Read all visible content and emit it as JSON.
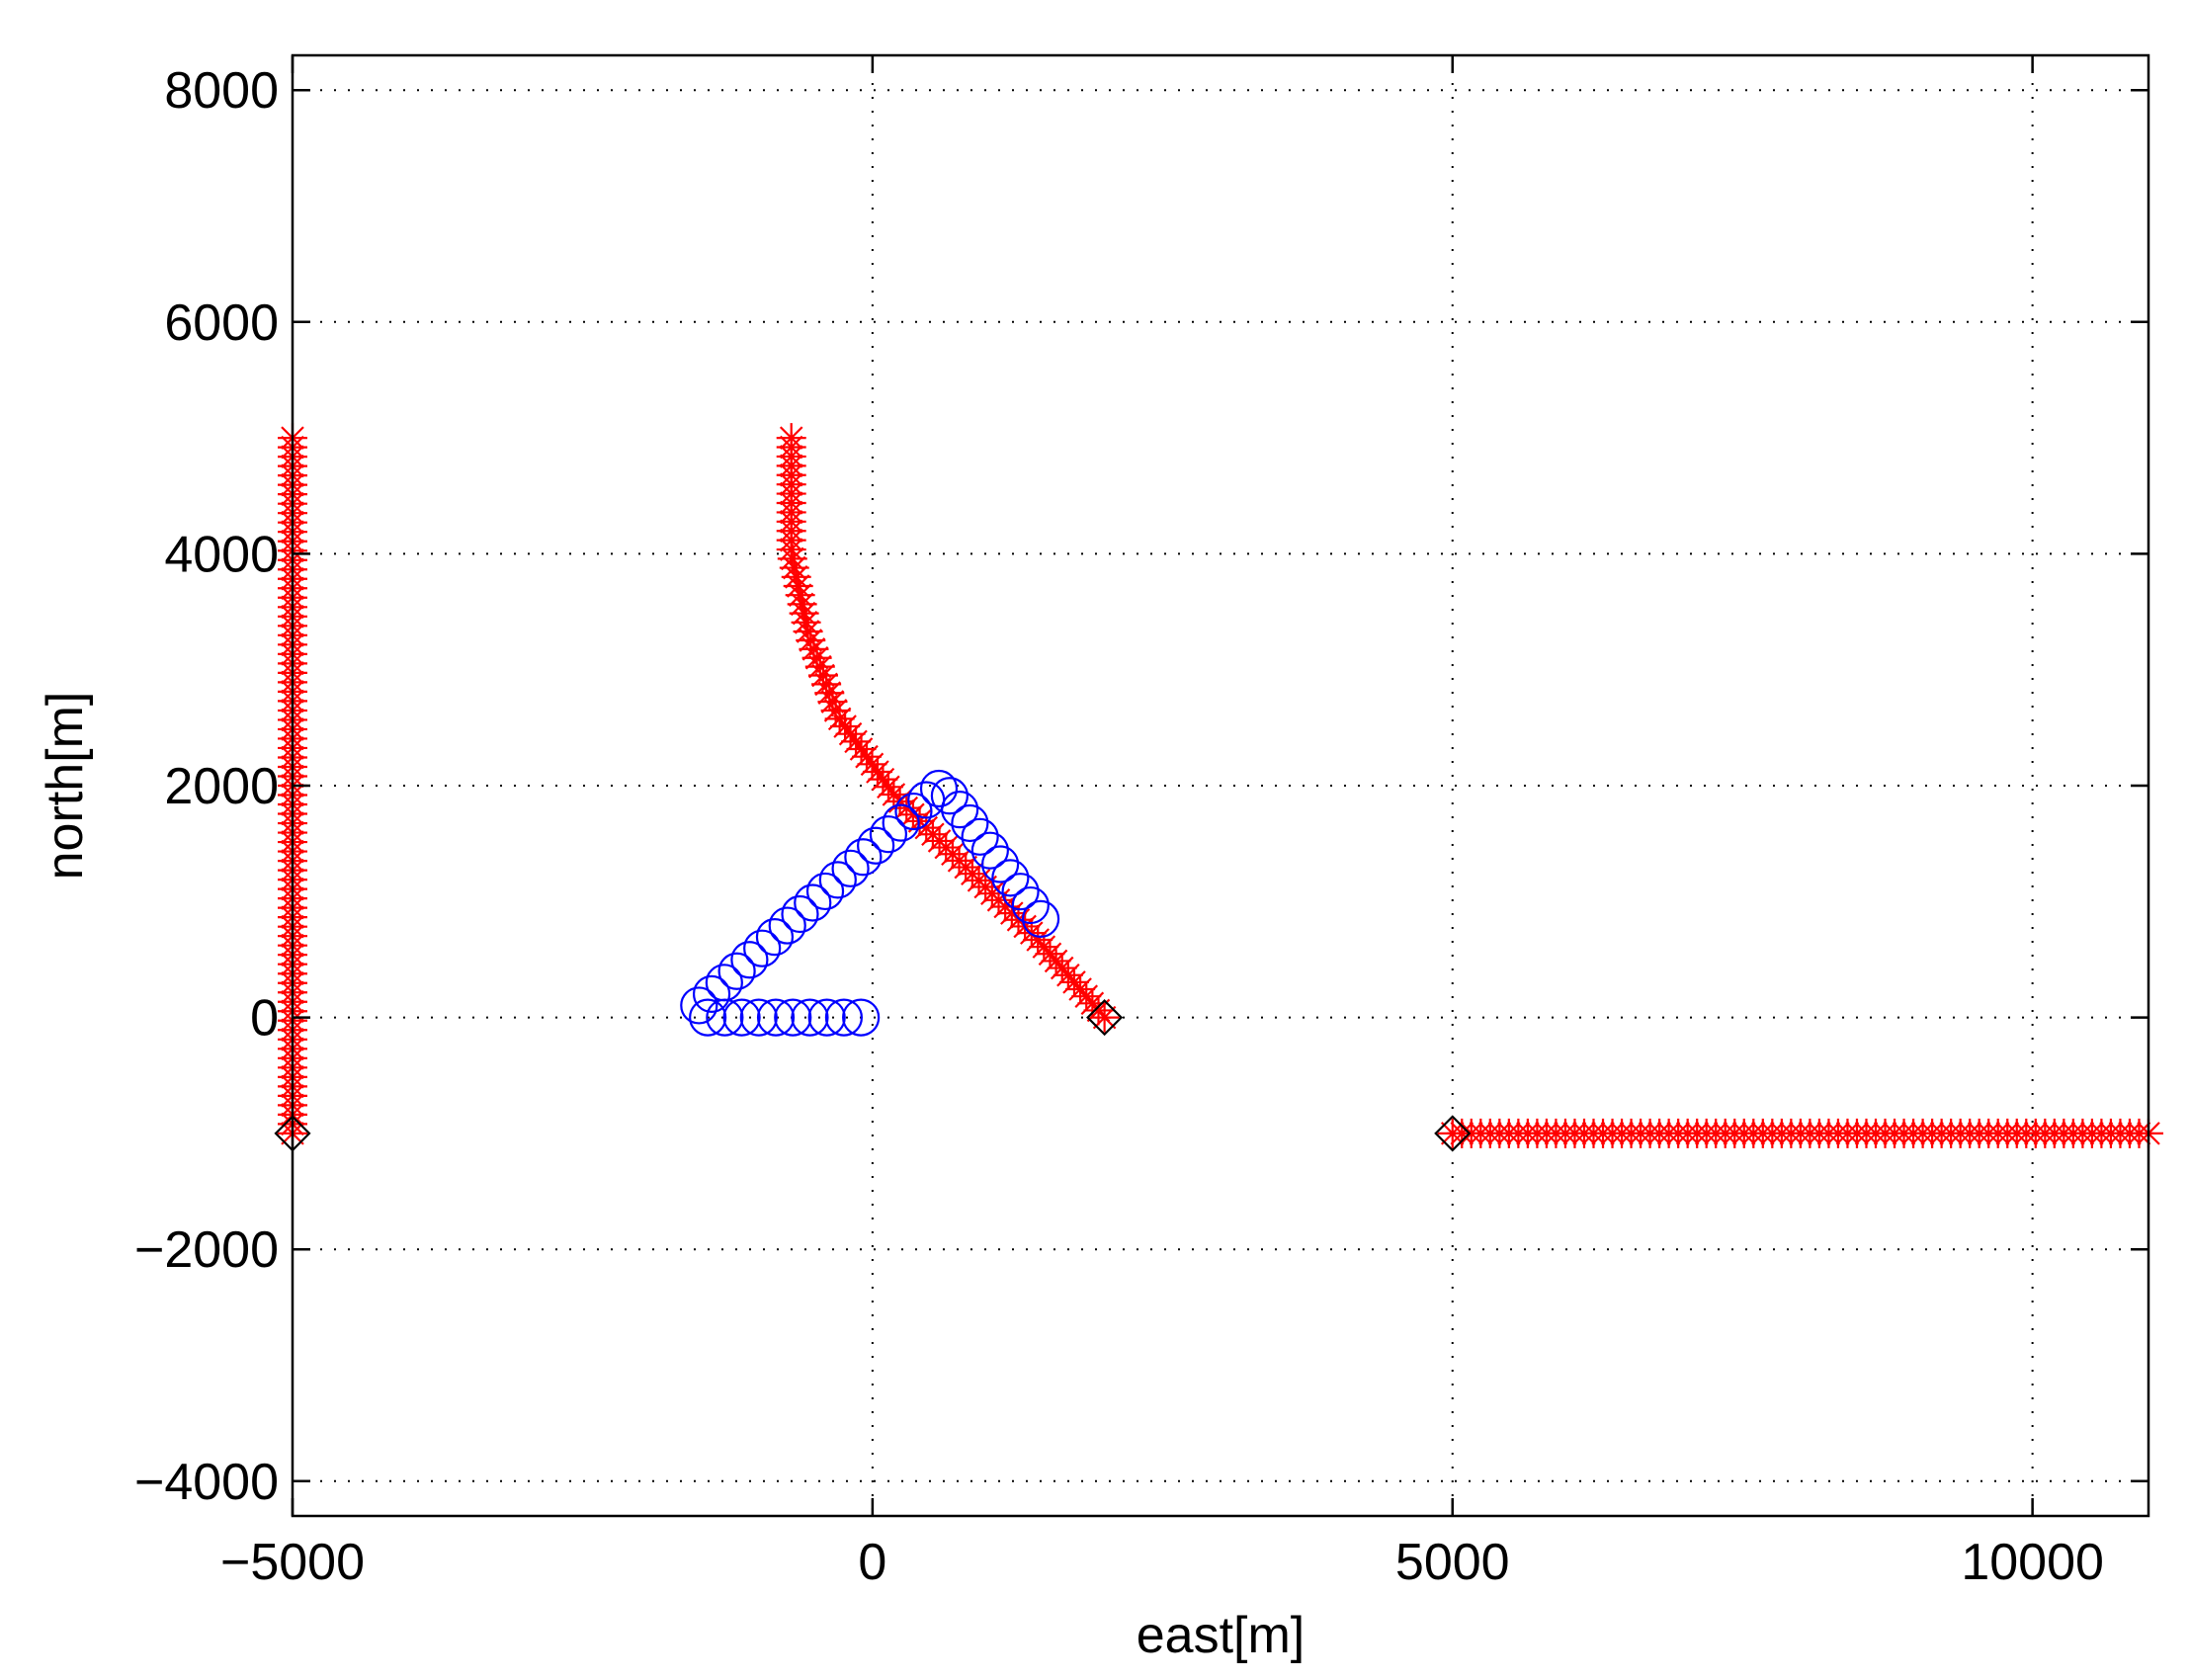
{
  "chart_data": {
    "type": "scatter",
    "title": "",
    "xlabel": "east[m]",
    "ylabel": "north[m]",
    "xlim": [
      -5000,
      11000
    ],
    "ylim": [
      -4300,
      8300
    ],
    "xticks": [
      -5000,
      0,
      5000,
      10000
    ],
    "yticks": [
      -4000,
      -2000,
      0,
      2000,
      4000,
      6000,
      8000
    ],
    "xtick_labels": [
      "−5000",
      "0",
      "5000",
      "10000"
    ],
    "ytick_labels": [
      "−4000",
      "−2000",
      "0",
      "2000",
      "4000",
      "6000",
      "8000"
    ],
    "grid": true,
    "legend": "none",
    "series": [
      {
        "marker": "asterisk",
        "color": "#ff0000",
        "path": [
          [
            -5000,
            -1000
          ],
          [
            -5000,
            5000
          ]
        ],
        "count": 75
      },
      {
        "marker": "asterisk",
        "color": "#ff0000",
        "path": [
          [
            2000,
            0
          ],
          [
            1400,
            700
          ],
          [
            800,
            1300
          ],
          [
            200,
            1900
          ],
          [
            -300,
            2600
          ],
          [
            -550,
            3300
          ],
          [
            -700,
            4000
          ],
          [
            -700,
            5000
          ]
        ],
        "count": 75
      },
      {
        "marker": "asterisk",
        "color": "#ff0000",
        "path": [
          [
            5000,
            -1000
          ],
          [
            11000,
            -1000
          ]
        ],
        "count": 75
      },
      {
        "marker": "circle",
        "color": "#0000ff",
        "path": [
          [
            -100,
            0
          ],
          [
            -1450,
            0
          ],
          [
            -1500,
            100
          ],
          [
            600,
            2000
          ],
          [
            1450,
            850
          ]
        ],
        "count": 40
      },
      {
        "marker": "diamond",
        "color": "#000000",
        "points": [
          [
            -5000,
            -1000
          ],
          [
            2000,
            0
          ],
          [
            5000,
            -1000
          ]
        ]
      }
    ]
  }
}
